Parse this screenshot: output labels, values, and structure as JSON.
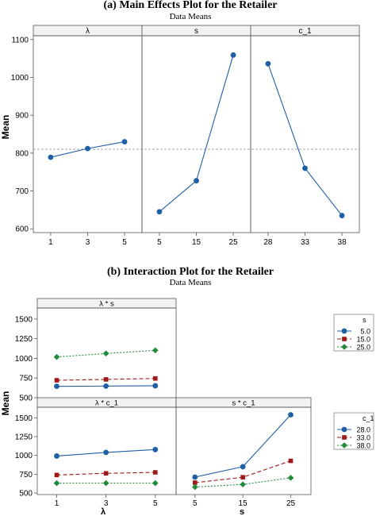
{
  "colors": {
    "blue": "#1f5fa6",
    "red": "#a01818",
    "green": "#1f8a3a",
    "panel_line": "#555555",
    "ref_line": "#999999",
    "strip_bg": "#f2f2f2"
  },
  "chart_data": [
    {
      "type": "line",
      "title": "(a) Main Effects Plot for the Retailer",
      "subtitle": "Data Means",
      "ylabel": "Mean",
      "ylim": [
        590,
        1110
      ],
      "yticks": [
        600,
        700,
        800,
        900,
        1000,
        1100
      ],
      "reference_line": 810,
      "panels": [
        {
          "factor": "λ",
          "x": [
            "1",
            "3",
            "5"
          ],
          "values": [
            789,
            812,
            830
          ]
        },
        {
          "factor": "s",
          "x": [
            "5",
            "15",
            "25"
          ],
          "values": [
            645,
            727,
            1059
          ]
        },
        {
          "factor": "c_1",
          "x": [
            "28",
            "33",
            "38"
          ],
          "values": [
            1036,
            760,
            635
          ]
        }
      ]
    },
    {
      "type": "line",
      "title": "(b) Interaction Plot for the Retailer",
      "subtitle": "Data Means",
      "ylabel": "Mean",
      "ylim": [
        480,
        1640
      ],
      "yticks": [
        500,
        750,
        1000,
        1250,
        1500
      ],
      "xlabels": [
        "λ",
        "s"
      ],
      "legends": [
        {
          "title": "s",
          "entries": [
            "5.0",
            "15.0",
            "25.0"
          ]
        },
        {
          "title": "c_1",
          "entries": [
            "28.0",
            "33.0",
            "38.0"
          ]
        }
      ],
      "panels": [
        {
          "label": "λ * s",
          "x": [
            "1",
            "3",
            "5"
          ],
          "series": [
            {
              "name": "5.0",
              "values": [
                645,
                648,
                652
              ]
            },
            {
              "name": "15.0",
              "values": [
                722,
                733,
                745
              ]
            },
            {
              "name": "25.0",
              "values": [
                1018,
                1062,
                1102
              ]
            }
          ]
        },
        {
          "label": "λ * c_1",
          "x": [
            "1",
            "3",
            "5"
          ],
          "series": [
            {
              "name": "28.0",
              "values": [
                992,
                1040,
                1078
              ]
            },
            {
              "name": "33.0",
              "values": [
                740,
                762,
                775
              ]
            },
            {
              "name": "38.0",
              "values": [
                632,
                632,
                632
              ]
            }
          ]
        },
        {
          "label": "s * c_1",
          "x": [
            "5",
            "15",
            "25"
          ],
          "series": [
            {
              "name": "28.0",
              "values": [
                712,
                850,
                1540
              ]
            },
            {
              "name": "33.0",
              "values": [
                638,
                710,
                928
              ]
            },
            {
              "name": "38.0",
              "values": [
                580,
                615,
                702
              ]
            }
          ]
        }
      ]
    }
  ]
}
